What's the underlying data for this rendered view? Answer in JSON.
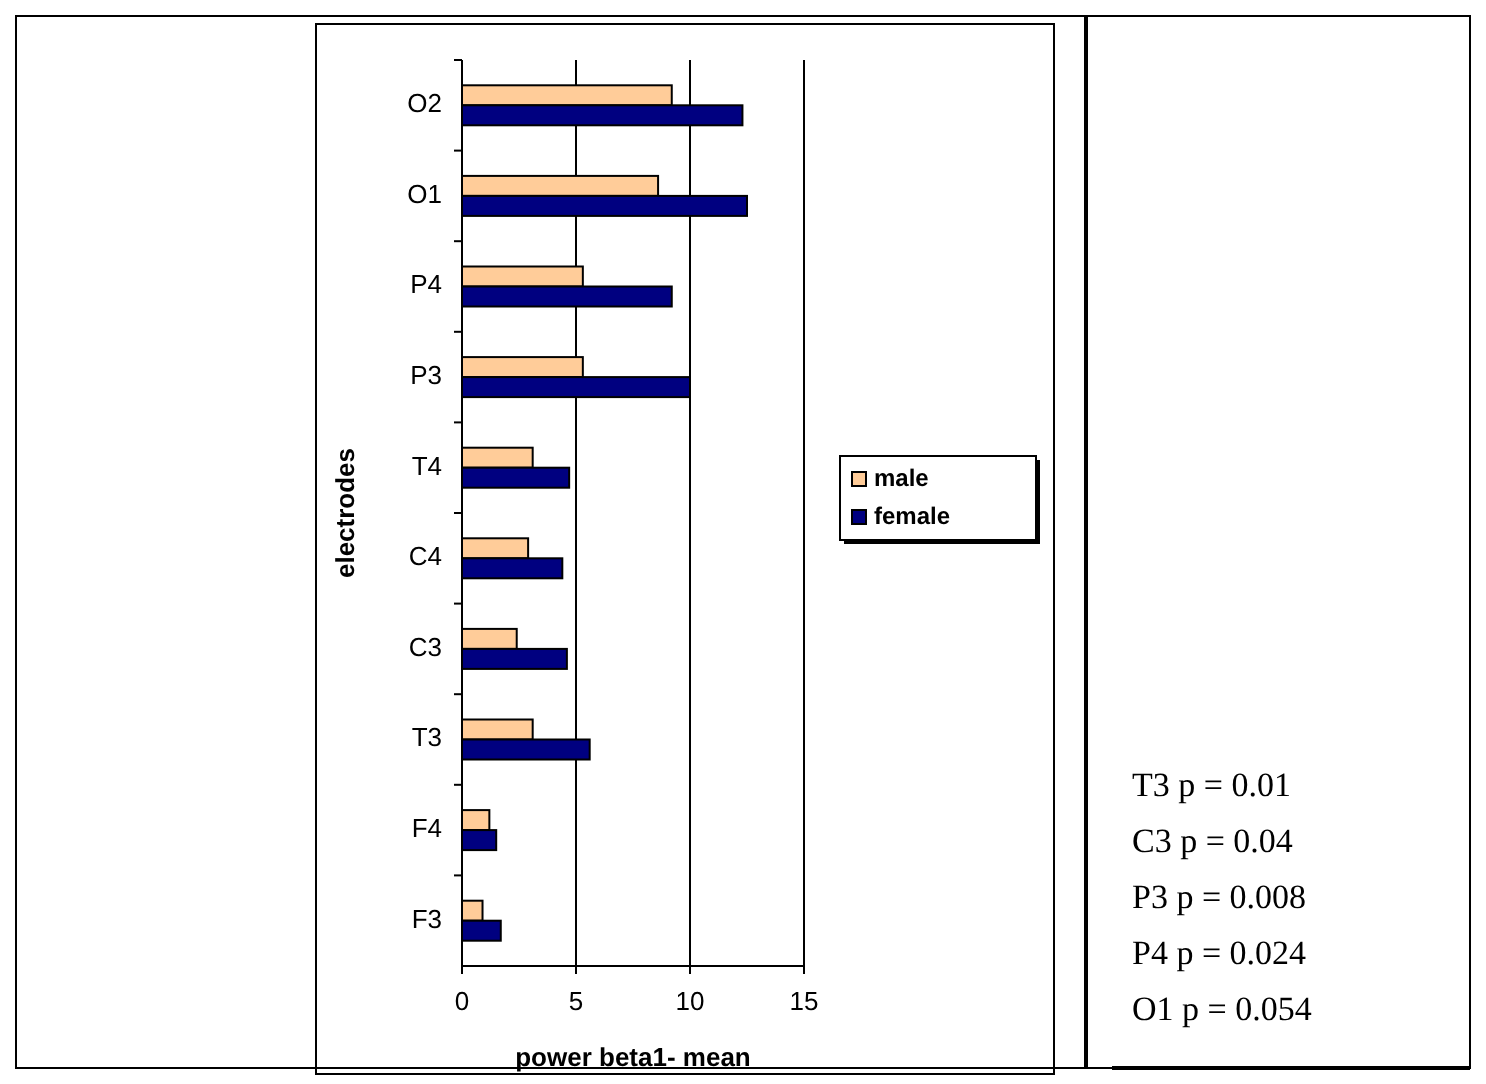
{
  "chart_data": {
    "type": "bar",
    "orientation": "horizontal",
    "xlabel": "power beta1- mean",
    "ylabel": "electrodes",
    "categories": [
      "O2",
      "O1",
      "P4",
      "P3",
      "T4",
      "C4",
      "C3",
      "T3",
      "F4",
      "F3"
    ],
    "series": [
      {
        "name": "male",
        "color": "#ffcc99",
        "values": [
          9.2,
          8.6,
          5.3,
          5.3,
          3.1,
          2.9,
          2.4,
          3.1,
          1.2,
          0.9
        ]
      },
      {
        "name": "female",
        "color": "#000080",
        "values": [
          12.3,
          12.5,
          9.2,
          10.0,
          4.7,
          4.4,
          4.6,
          5.6,
          1.5,
          1.7
        ]
      }
    ],
    "xlim": [
      0,
      15
    ],
    "xticks": [
      0,
      5,
      10,
      15
    ],
    "grid": "x",
    "legend": "right",
    "annotations": [
      "T3 p = 0.01",
      "C3 p = 0.04",
      "P3 p = 0.008",
      "P4 p = 0.024",
      "O1 p = 0.054"
    ]
  }
}
